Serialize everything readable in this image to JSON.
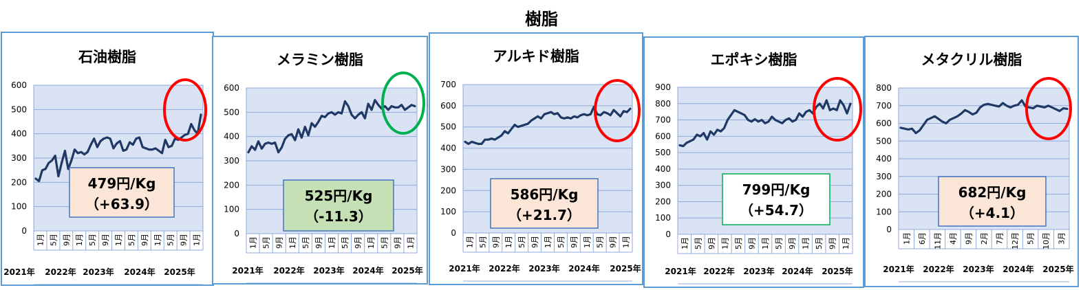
{
  "title": "樹脂",
  "chart_data": [
    {
      "type": "line",
      "title": "石油樹脂",
      "ylim": [
        0,
        600
      ],
      "yticks": [
        0,
        100,
        200,
        300,
        400,
        500,
        600
      ],
      "xtick_labels": [
        "1月",
        "5月",
        "9月",
        "1月",
        "5月",
        "9月",
        "1月",
        "5月",
        "9月",
        "1月",
        "5月",
        "9月",
        "1月"
      ],
      "years": [
        "2021年",
        "2022年",
        "2023年",
        "2024年",
        "2025年"
      ],
      "series": [
        {
          "values": [
            215,
            205,
            250,
            255,
            280,
            290,
            310,
            225,
            280,
            330,
            255,
            290,
            335,
            320,
            325,
            315,
            325,
            355,
            380,
            345,
            370,
            380,
            385,
            380,
            340,
            360,
            370,
            330,
            335,
            365,
            355,
            380,
            385,
            345,
            340,
            335,
            335,
            340,
            330,
            320,
            375,
            345,
            350,
            380,
            375,
            385,
            395,
            400,
            440,
            415,
            400,
            479
          ]
        }
      ],
      "price_box": {
        "price": "479円/Kg",
        "change": "（+63.9）",
        "fill": "#fbe5d6",
        "border": "#4472c4"
      },
      "highlight": {
        "color": "#ff0000"
      }
    },
    {
      "type": "line",
      "title": "メラミン樹脂",
      "ylim": [
        0,
        600
      ],
      "yticks": [
        0,
        100,
        200,
        300,
        400,
        500,
        600
      ],
      "xtick_labels": [
        "1月",
        "5月",
        "9月",
        "1月",
        "5月",
        "9月",
        "1月",
        "5月",
        "9月",
        "1月",
        "5月",
        "9月",
        "1月"
      ],
      "years": [
        "2021年",
        "2022年",
        "2023年",
        "2024年",
        "2025年"
      ],
      "series": [
        {
          "values": [
            335,
            360,
            345,
            380,
            350,
            370,
            375,
            370,
            375,
            335,
            355,
            390,
            405,
            410,
            385,
            430,
            395,
            440,
            405,
            455,
            440,
            460,
            485,
            480,
            495,
            500,
            490,
            500,
            495,
            545,
            525,
            490,
            475,
            490,
            500,
            475,
            535,
            510,
            550,
            530,
            515,
            525,
            510,
            525,
            520,
            520,
            530,
            510,
            520,
            530,
            525
          ]
        }
      ],
      "price_box": {
        "price": "525円/Kg",
        "change": "（-11.3）",
        "fill": "#c5e0b4",
        "border": "#4472c4"
      },
      "highlight": {
        "color": "#00b050"
      }
    },
    {
      "type": "line",
      "title": "アルキド樹脂",
      "ylim": [
        0,
        700
      ],
      "yticks": [
        0,
        100,
        200,
        300,
        400,
        500,
        600,
        700
      ],
      "xtick_labels": [
        "1月",
        "5月",
        "9月",
        "1月",
        "5月",
        "9月",
        "1月",
        "5月",
        "9月",
        "1月",
        "5月",
        "9月",
        "1月"
      ],
      "years": [
        "2021年",
        "2022年",
        "2023年",
        "2024年",
        "2025年"
      ],
      "series": [
        {
          "values": [
            430,
            420,
            430,
            425,
            420,
            420,
            440,
            440,
            445,
            440,
            450,
            460,
            480,
            470,
            490,
            510,
            500,
            505,
            510,
            515,
            530,
            540,
            550,
            540,
            560,
            565,
            570,
            560,
            565,
            545,
            540,
            545,
            540,
            550,
            545,
            555,
            560,
            555,
            560,
            595,
            560,
            555,
            570,
            565,
            555,
            580,
            565,
            550,
            575,
            570,
            586
          ]
        }
      ],
      "price_box": {
        "price": "586円/Kg",
        "change": "（+21.7）",
        "fill": "#fbe5d6",
        "border": "#4472c4"
      },
      "highlight": {
        "color": "#ff0000"
      }
    },
    {
      "type": "line",
      "title": "エポキシ樹脂",
      "ylim": [
        0,
        900
      ],
      "yticks": [
        0,
        100,
        200,
        300,
        400,
        500,
        600,
        700,
        800,
        900
      ],
      "xtick_labels": [
        "1月",
        "5月",
        "9月",
        "1月",
        "5月",
        "9月",
        "1月",
        "5月",
        "9月",
        "1月",
        "5月",
        "9月",
        "1月"
      ],
      "years": [
        "2021年",
        "2022年",
        "2023年",
        "2024年",
        "2025年"
      ],
      "series": [
        {
          "values": [
            545,
            540,
            560,
            570,
            580,
            610,
            600,
            620,
            580,
            630,
            610,
            640,
            630,
            650,
            700,
            730,
            760,
            750,
            740,
            730,
            700,
            690,
            705,
            690,
            700,
            680,
            690,
            720,
            700,
            690,
            680,
            700,
            710,
            690,
            700,
            740,
            720,
            750,
            760,
            740,
            780,
            800,
            770,
            820,
            760,
            770,
            760,
            820,
            790,
            740,
            799
          ]
        }
      ],
      "price_box": {
        "price": "799円/Kg",
        "change": "（+54.7）",
        "fill": "#ffffff",
        "border": "#00b050"
      },
      "highlight": {
        "color": "#ff0000"
      }
    },
    {
      "type": "line",
      "title": "メタクリル樹脂",
      "ylim": [
        0,
        800
      ],
      "yticks": [
        0,
        100,
        200,
        300,
        400,
        500,
        600,
        700,
        800
      ],
      "xtick_labels": [
        "1月",
        "6月",
        "11月",
        "4月",
        "9月",
        "2月",
        "7月",
        "12月",
        "5月",
        "10月",
        "3月"
      ],
      "years": [
        "2021年",
        "2022年",
        "2023年",
        "2024年",
        "2025年"
      ],
      "series": [
        {
          "values": [
            575,
            570,
            565,
            570,
            545,
            560,
            590,
            620,
            630,
            640,
            625,
            610,
            600,
            620,
            630,
            640,
            655,
            675,
            665,
            650,
            660,
            690,
            705,
            710,
            705,
            700,
            695,
            715,
            700,
            690,
            700,
            705,
            730,
            695,
            690,
            685,
            700,
            695,
            690,
            700,
            690,
            680,
            670,
            685,
            682
          ]
        }
      ],
      "price_box": {
        "price": "682円/Kg",
        "change": "（+4.1）",
        "fill": "#fbe5d6",
        "border": "#4472c4"
      },
      "highlight": {
        "color": "#ff0000"
      }
    }
  ]
}
